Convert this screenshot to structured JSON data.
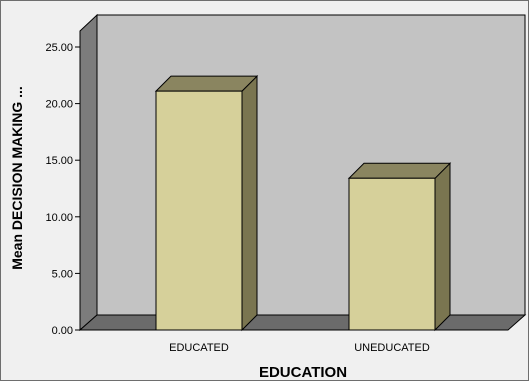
{
  "chart_data": {
    "type": "bar",
    "categories": [
      "EDUCATED",
      "UNEDUCATED"
    ],
    "values": [
      21.1,
      13.4
    ],
    "title": "",
    "xlabel": "EDUCATION",
    "ylabel": "Mean DECISION MAKING ...",
    "ylim": [
      0,
      25
    ],
    "yticks": [
      "0.00",
      "5.00",
      "10.00",
      "15.00",
      "20.00",
      "25.00"
    ],
    "grid": false,
    "colors": {
      "bar_front": "#d6d09a",
      "bar_top": "#8a8560",
      "bar_side": "#7a7550",
      "wall": "#c3c3c3",
      "floor": "#6b6b6b",
      "left_wall": "#7c7c7c",
      "frame": "#f0f0f0"
    }
  }
}
